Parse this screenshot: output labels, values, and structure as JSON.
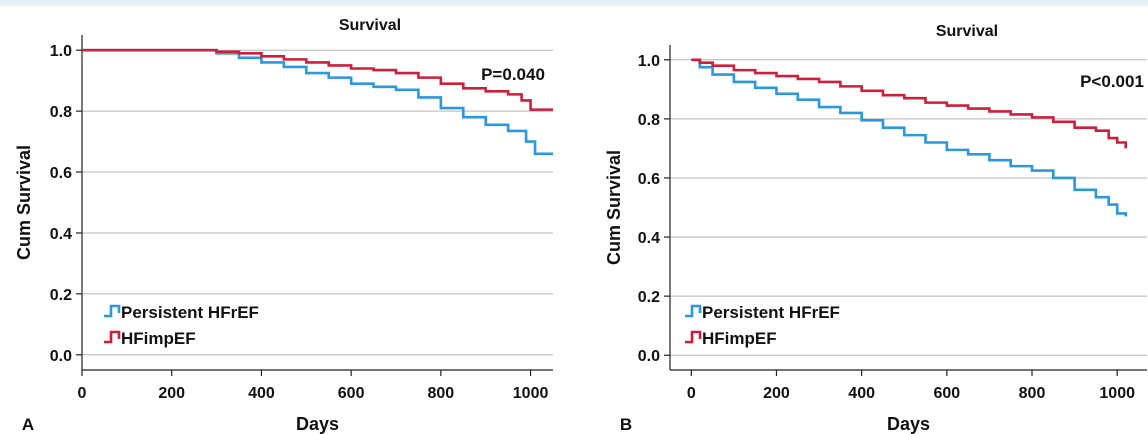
{
  "chart_data": [
    {
      "type": "line",
      "panel_label": "A",
      "title": "Survival",
      "xlabel": "Days",
      "ylabel": "Cum Survival",
      "xlim": [
        0,
        1050
      ],
      "ylim": [
        -0.05,
        1.05
      ],
      "x_ticks": [
        0,
        200,
        400,
        600,
        800,
        1000
      ],
      "y_ticks": [
        0.0,
        0.2,
        0.4,
        0.6,
        0.8,
        1.0
      ],
      "x_tick_labels": [
        "0",
        "200",
        "400",
        "600",
        "800",
        "1000"
      ],
      "y_tick_labels": [
        "0.0",
        "0.2",
        "0.4",
        "0.6",
        "0.8",
        "1.0"
      ],
      "grid": "horizontal",
      "legend_position": "bottom-left",
      "annotation": "P=0.040",
      "series": [
        {
          "name": "Persistent HFrEF",
          "color": "#2b98dc",
          "x": [
            0,
            250,
            300,
            350,
            400,
            450,
            500,
            550,
            600,
            650,
            700,
            750,
            800,
            850,
            900,
            950,
            990,
            1010,
            1050
          ],
          "y": [
            1.0,
            1.0,
            0.99,
            0.975,
            0.96,
            0.945,
            0.925,
            0.91,
            0.89,
            0.88,
            0.87,
            0.845,
            0.81,
            0.78,
            0.755,
            0.735,
            0.7,
            0.66,
            0.66
          ]
        },
        {
          "name": "HFimpEF",
          "color": "#cc1f3c",
          "x": [
            0,
            250,
            300,
            350,
            400,
            450,
            500,
            550,
            600,
            650,
            700,
            750,
            800,
            850,
            900,
            950,
            980,
            1000,
            1050
          ],
          "y": [
            1.0,
            1.0,
            0.995,
            0.99,
            0.98,
            0.97,
            0.96,
            0.95,
            0.94,
            0.935,
            0.925,
            0.91,
            0.89,
            0.875,
            0.865,
            0.855,
            0.835,
            0.805,
            0.805
          ]
        }
      ]
    },
    {
      "type": "line",
      "panel_label": "B",
      "title": "Survival",
      "xlabel": "Days",
      "ylabel": "Cum Survival",
      "xlim": [
        -50,
        1070
      ],
      "ylim": [
        -0.05,
        1.05
      ],
      "x_ticks": [
        0,
        200,
        400,
        600,
        800,
        1000
      ],
      "y_ticks": [
        0.0,
        0.2,
        0.4,
        0.6,
        0.8,
        1.0
      ],
      "x_tick_labels": [
        "0",
        "200",
        "400",
        "600",
        "800",
        "1000"
      ],
      "y_tick_labels": [
        "0.0",
        "0.2",
        "0.4",
        "0.6",
        "0.8",
        "1.0"
      ],
      "grid": "horizontal",
      "legend_position": "bottom-left",
      "annotation": "P<0.001",
      "series": [
        {
          "name": "Persistent HFrEF",
          "color": "#2b98dc",
          "x": [
            0,
            20,
            50,
            100,
            150,
            200,
            250,
            300,
            350,
            400,
            450,
            500,
            550,
            600,
            650,
            700,
            750,
            800,
            850,
            900,
            950,
            980,
            1000,
            1020
          ],
          "y": [
            1.0,
            0.975,
            0.95,
            0.925,
            0.905,
            0.885,
            0.865,
            0.84,
            0.82,
            0.795,
            0.77,
            0.745,
            0.72,
            0.695,
            0.68,
            0.66,
            0.64,
            0.625,
            0.6,
            0.56,
            0.535,
            0.51,
            0.48,
            0.47
          ]
        },
        {
          "name": "HFimpEF",
          "color": "#cc1f3c",
          "x": [
            0,
            20,
            50,
            100,
            150,
            200,
            250,
            300,
            350,
            400,
            450,
            500,
            550,
            600,
            650,
            700,
            750,
            800,
            850,
            900,
            950,
            980,
            1000,
            1020
          ],
          "y": [
            1.0,
            0.99,
            0.98,
            0.965,
            0.955,
            0.945,
            0.935,
            0.925,
            0.91,
            0.895,
            0.88,
            0.87,
            0.855,
            0.845,
            0.835,
            0.825,
            0.815,
            0.805,
            0.79,
            0.77,
            0.76,
            0.735,
            0.72,
            0.7
          ]
        }
      ]
    }
  ]
}
